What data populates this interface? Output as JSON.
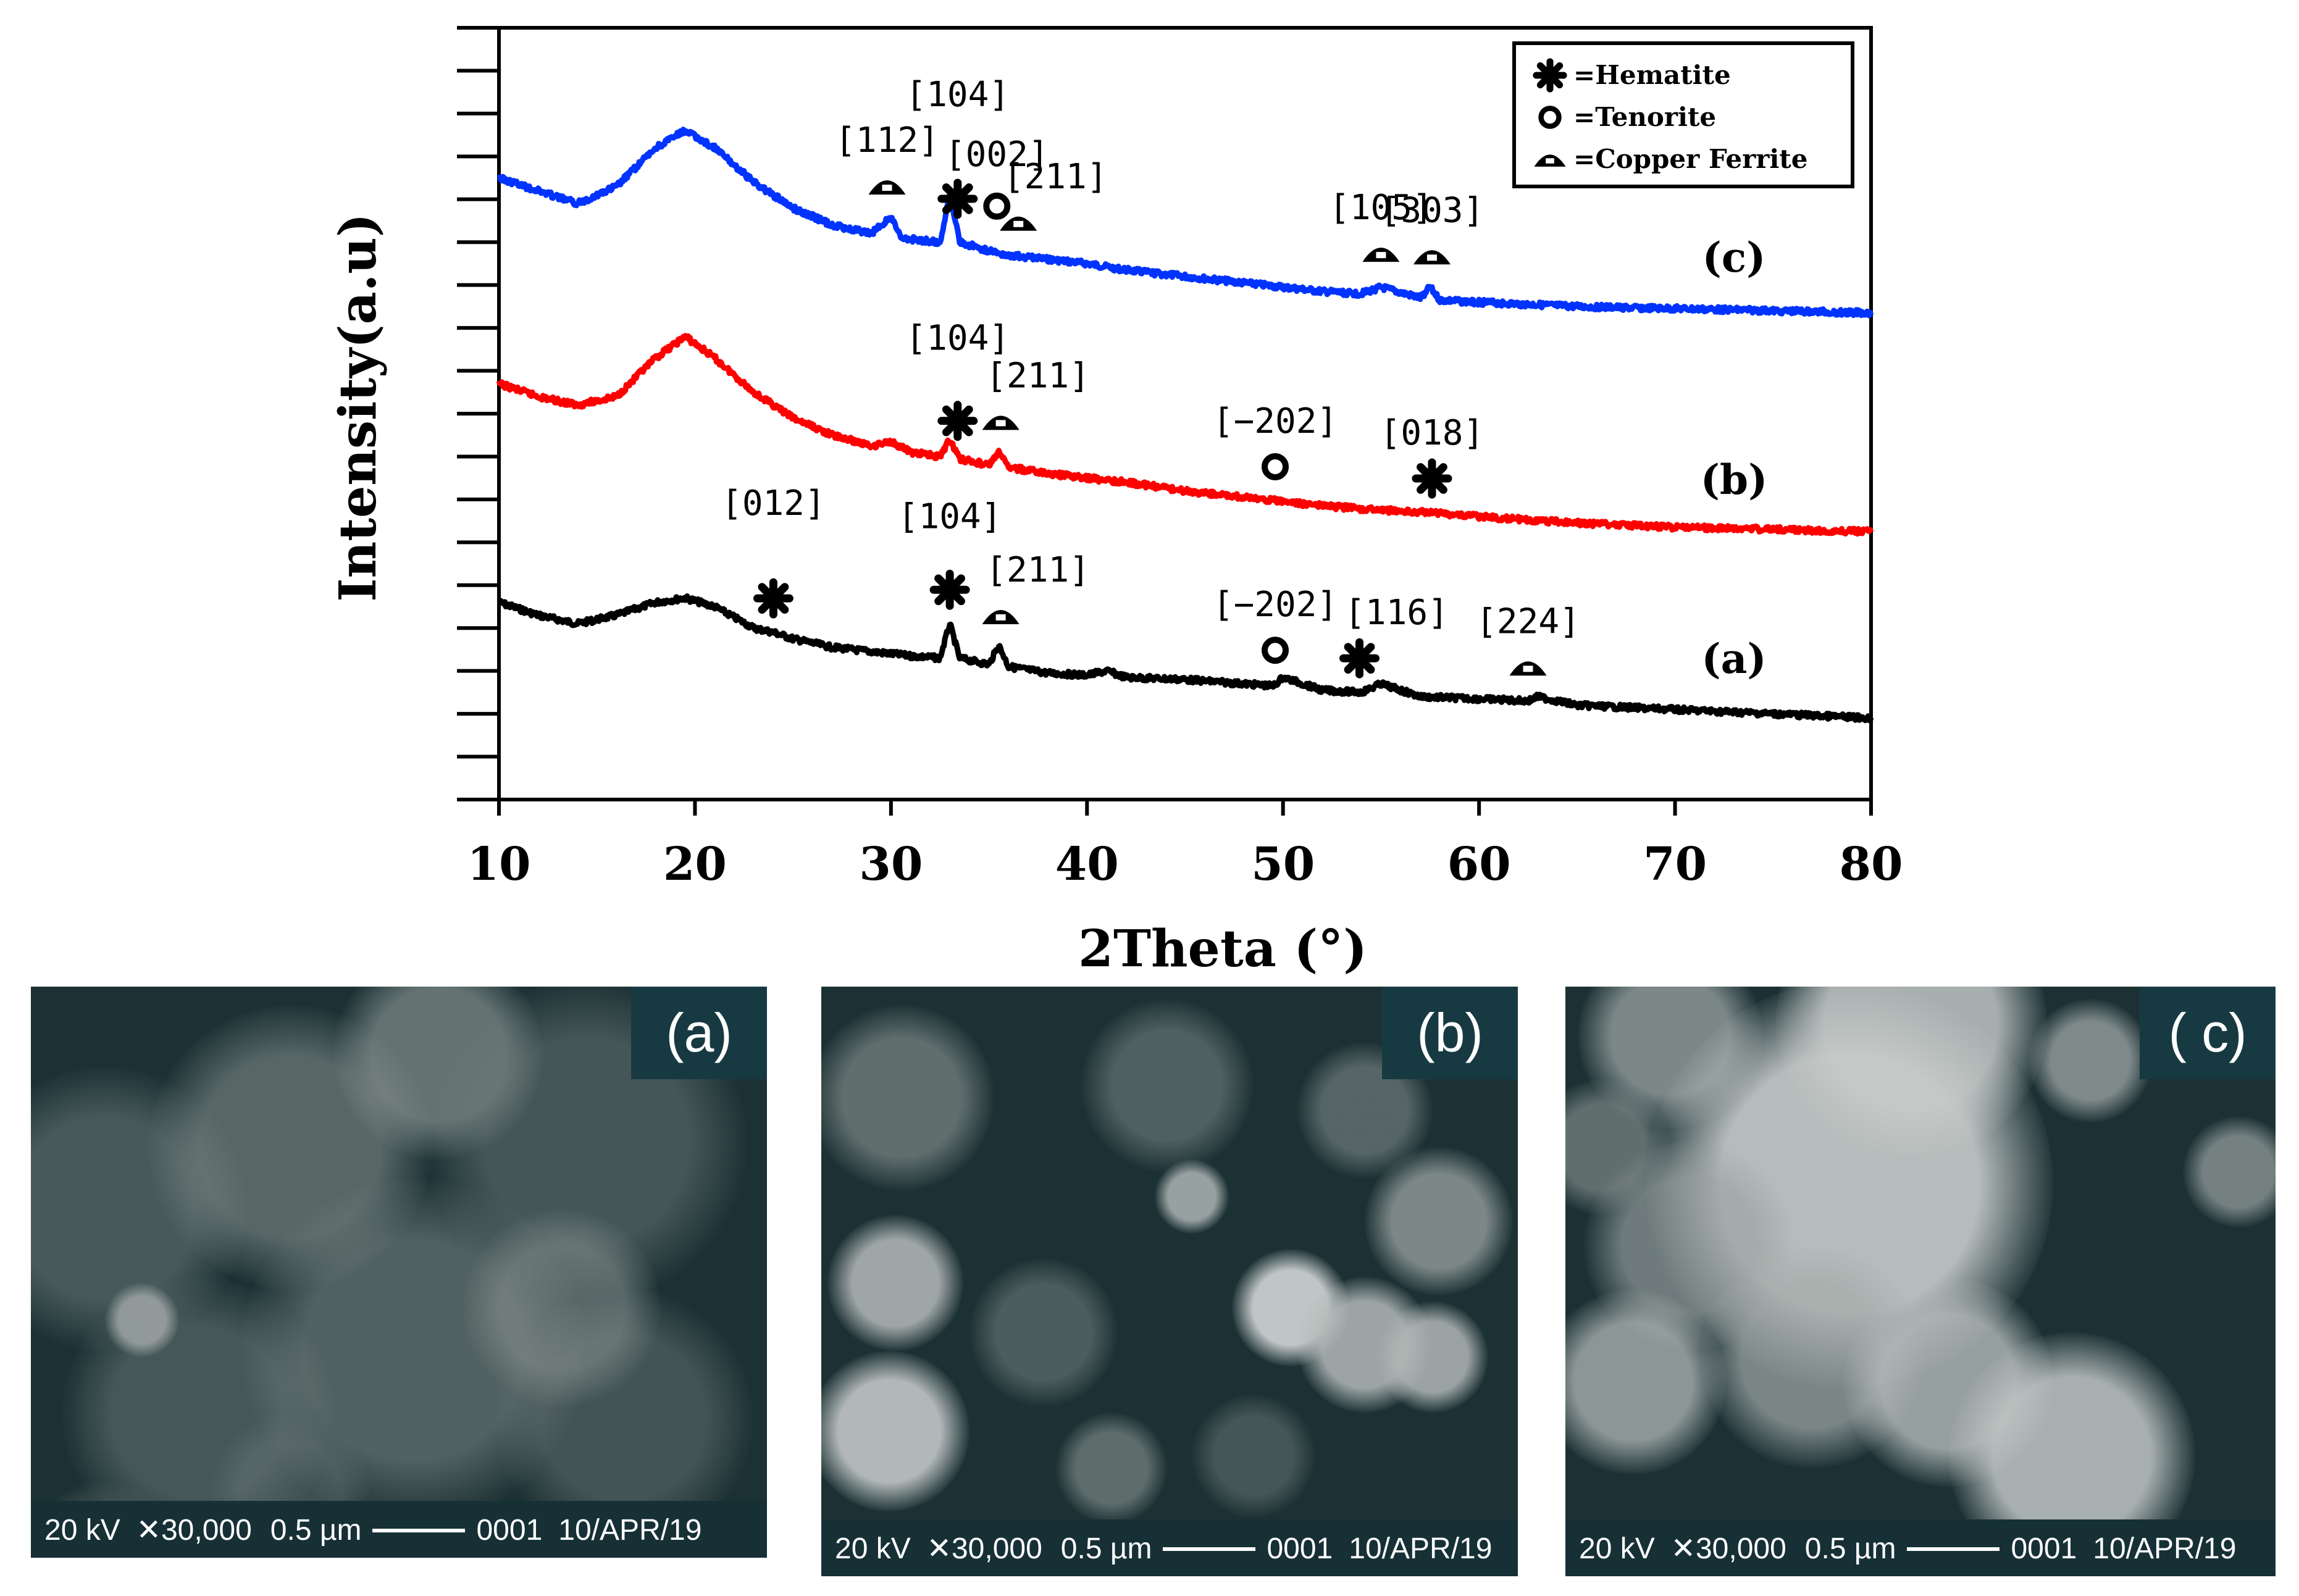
{
  "chart_data": {
    "type": "line",
    "title": "",
    "xlabel": "2Theta (°)",
    "ylabel": "Intensity(a.u)",
    "xlim": [
      10,
      80
    ],
    "xticks": [
      10,
      20,
      30,
      40,
      50,
      60,
      70,
      80
    ],
    "ylim": [
      0,
      18
    ],
    "grid": false,
    "legend_position": "top-right",
    "legend": [
      {
        "symbol": "asterisk",
        "label": "=Hematite"
      },
      {
        "symbol": "circle",
        "label": "=Tenorite"
      },
      {
        "symbol": "triangle",
        "label": "=Copper Ferrite"
      }
    ],
    "series": [
      {
        "label": "(a)",
        "color": "#000000",
        "x": [
          10,
          12,
          14,
          16,
          18,
          19.5,
          21,
          23,
          24,
          25,
          27,
          29,
          31,
          32.5,
          33,
          33.5,
          35,
          35.5,
          36,
          38,
          40,
          41,
          42,
          45,
          48,
          49.5,
          50,
          52,
          54,
          55,
          57,
          60,
          62.5,
          63,
          65,
          70,
          75,
          80
        ],
        "y": [
          4.6,
          4.3,
          4.1,
          4.3,
          4.6,
          4.7,
          4.5,
          4.0,
          3.9,
          3.75,
          3.55,
          3.45,
          3.35,
          3.3,
          4.1,
          3.3,
          3.15,
          3.6,
          3.1,
          2.95,
          2.9,
          3.0,
          2.85,
          2.8,
          2.7,
          2.65,
          2.85,
          2.55,
          2.5,
          2.7,
          2.4,
          2.35,
          2.3,
          2.4,
          2.2,
          2.1,
          2.0,
          1.9
        ]
      },
      {
        "label": "(b)",
        "color": "#ff0000",
        "x": [
          10,
          12,
          14,
          16,
          18,
          19.5,
          21,
          23,
          25,
          27,
          29,
          30,
          31,
          32.5,
          33,
          33.5,
          35,
          35.5,
          36,
          38,
          40,
          42,
          45,
          48,
          50,
          52,
          55,
          57.5,
          60,
          65,
          70,
          75,
          80
        ],
        "y": [
          9.7,
          9.4,
          9.2,
          9.4,
          10.3,
          10.8,
          10.3,
          9.5,
          8.9,
          8.5,
          8.25,
          8.35,
          8.1,
          8.0,
          8.4,
          7.95,
          7.8,
          8.1,
          7.75,
          7.6,
          7.5,
          7.4,
          7.2,
          7.05,
          6.95,
          6.85,
          6.75,
          6.7,
          6.6,
          6.45,
          6.35,
          6.3,
          6.25
        ]
      },
      {
        "label": "(c)",
        "color": "#0033ff",
        "x": [
          10,
          12,
          14,
          16,
          18,
          19.5,
          21,
          23,
          25,
          27,
          29,
          30,
          30.5,
          32.5,
          33,
          33.5,
          35,
          36,
          38,
          40,
          42,
          45,
          48,
          50,
          52,
          54,
          55,
          57,
          57.5,
          58,
          60,
          65,
          70,
          75,
          80
        ],
        "y": [
          14.5,
          14.2,
          13.9,
          14.3,
          15.2,
          15.6,
          15.2,
          14.4,
          13.8,
          13.4,
          13.2,
          13.6,
          13.1,
          13.0,
          14.1,
          13.0,
          12.8,
          12.7,
          12.6,
          12.5,
          12.35,
          12.2,
          12.05,
          11.95,
          11.85,
          11.8,
          11.95,
          11.7,
          11.95,
          11.65,
          11.6,
          11.5,
          11.45,
          11.4,
          11.35
        ]
      }
    ],
    "annotations": [
      {
        "series": "(c)",
        "text": "[112]",
        "x": 29.8,
        "marker": "triangle"
      },
      {
        "series": "(c)",
        "text": "[104]",
        "x": 33.4,
        "marker": "asterisk"
      },
      {
        "series": "(c)",
        "text": "[002]",
        "x": 35.4,
        "marker": "circle"
      },
      {
        "series": "(c)",
        "text": "[211]",
        "x": 36.5,
        "marker": "triangle"
      },
      {
        "series": "(c)",
        "text": "[105]",
        "x": 55.0,
        "marker": "triangle"
      },
      {
        "series": "(c)",
        "text": "[303]",
        "x": 57.6,
        "marker": "triangle"
      },
      {
        "series": "(b)",
        "text": "[104]",
        "x": 33.4,
        "marker": "asterisk"
      },
      {
        "series": "(b)",
        "text": "[211]",
        "x": 35.6,
        "marker": "triangle"
      },
      {
        "series": "(b)",
        "text": "[−202]",
        "x": 49.6,
        "marker": "circle"
      },
      {
        "series": "(b)",
        "text": "[018]",
        "x": 57.6,
        "marker": "asterisk"
      },
      {
        "series": "(a)",
        "text": "[012]",
        "x": 24.0,
        "marker": "asterisk"
      },
      {
        "series": "(a)",
        "text": "[104]",
        "x": 33.0,
        "marker": "asterisk"
      },
      {
        "series": "(a)",
        "text": "[211]",
        "x": 35.6,
        "marker": "triangle"
      },
      {
        "series": "(a)",
        "text": "[−202]",
        "x": 49.6,
        "marker": "circle"
      },
      {
        "series": "(a)",
        "text": "[116]",
        "x": 53.9,
        "marker": "asterisk"
      },
      {
        "series": "(a)",
        "text": "[224]",
        "x": 62.5,
        "marker": "triangle"
      }
    ]
  },
  "sem_images": [
    {
      "label": "(a)",
      "voltage": "20 kV",
      "magnification": "✕30,000",
      "scale": "0.5  µm",
      "id": "0001",
      "date": "10/APR/19"
    },
    {
      "label": "(b)",
      "voltage": "20 kV",
      "magnification": "✕30,000",
      "scale": "0.5  µm",
      "id": "0001",
      "date": "10/APR/19"
    },
    {
      "label": "( c)",
      "voltage": "20 kV",
      "magnification": "✕30,000",
      "scale": "0.5     µm",
      "id": "0001",
      "date": "10/APR/19"
    }
  ]
}
